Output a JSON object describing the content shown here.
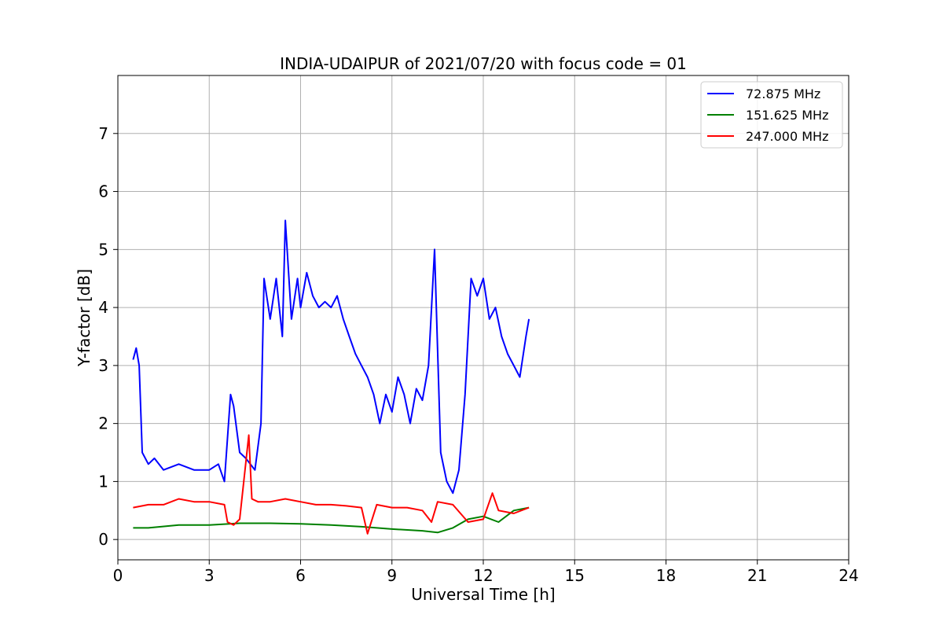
{
  "chart_data": {
    "type": "line",
    "title": "INDIA-UDAIPUR of 2021/07/20 with focus code = 01",
    "xlabel": "Universal Time [h]",
    "ylabel": "Y-factor [dB]",
    "xlim": [
      0,
      24
    ],
    "ylim": [
      -0.35,
      8.0
    ],
    "xticks": [
      0,
      3,
      6,
      9,
      12,
      15,
      18,
      21,
      24
    ],
    "xtick_labels": [
      "0",
      "3",
      "6",
      "9",
      "12",
      "15",
      "18",
      "21",
      "24"
    ],
    "yticks": [
      0,
      1,
      2,
      3,
      4,
      5,
      6,
      7
    ],
    "ytick_labels": [
      "0",
      "1",
      "2",
      "3",
      "4",
      "5",
      "6",
      "7"
    ],
    "grid": true,
    "legend_position": "top-right",
    "series": [
      {
        "name": "72.875 MHz",
        "color": "#0000ff",
        "x": [
          0.5,
          0.6,
          0.7,
          0.8,
          1.0,
          1.2,
          1.5,
          2.0,
          2.5,
          3.0,
          3.3,
          3.5,
          3.7,
          3.8,
          4.0,
          4.2,
          4.5,
          4.7,
          4.8,
          5.0,
          5.2,
          5.4,
          5.5,
          5.7,
          5.9,
          6.0,
          6.2,
          6.4,
          6.6,
          6.8,
          7.0,
          7.2,
          7.4,
          7.6,
          7.8,
          8.0,
          8.2,
          8.4,
          8.6,
          8.8,
          9.0,
          9.2,
          9.4,
          9.6,
          9.8,
          10.0,
          10.2,
          10.4,
          10.6,
          10.8,
          11.0,
          11.2,
          11.4,
          11.6,
          11.8,
          12.0,
          12.2,
          12.4,
          12.6,
          12.8,
          13.0,
          13.2,
          13.4,
          13.5
        ],
        "y": [
          3.1,
          3.3,
          3.0,
          1.5,
          1.3,
          1.4,
          1.2,
          1.3,
          1.2,
          1.2,
          1.3,
          1.0,
          2.5,
          2.3,
          1.5,
          1.4,
          1.2,
          2.0,
          4.5,
          3.8,
          4.5,
          3.5,
          5.5,
          3.8,
          4.5,
          4.0,
          4.6,
          4.2,
          4.0,
          4.1,
          4.0,
          4.2,
          3.8,
          3.5,
          3.2,
          3.0,
          2.8,
          2.5,
          2.0,
          2.5,
          2.2,
          2.8,
          2.5,
          2.0,
          2.6,
          2.4,
          3.0,
          5.0,
          1.5,
          1.0,
          0.8,
          1.2,
          2.5,
          4.5,
          4.2,
          4.5,
          3.8,
          4.0,
          3.5,
          3.2,
          3.0,
          2.8,
          3.5,
          3.8
        ]
      },
      {
        "name": "151.625 MHz",
        "color": "#008000",
        "x": [
          0.5,
          1.0,
          2.0,
          3.0,
          4.0,
          5.0,
          6.0,
          7.0,
          8.0,
          9.0,
          10.0,
          10.5,
          11.0,
          11.5,
          12.0,
          12.5,
          13.0,
          13.5
        ],
        "y": [
          0.2,
          0.2,
          0.25,
          0.25,
          0.28,
          0.28,
          0.27,
          0.25,
          0.22,
          0.18,
          0.15,
          0.12,
          0.2,
          0.35,
          0.4,
          0.3,
          0.5,
          0.55
        ]
      },
      {
        "name": "247.000 MHz",
        "color": "#ff0000",
        "x": [
          0.5,
          1.0,
          1.5,
          2.0,
          2.5,
          3.0,
          3.5,
          3.6,
          3.8,
          4.0,
          4.3,
          4.4,
          4.6,
          5.0,
          5.5,
          6.0,
          6.5,
          7.0,
          7.5,
          8.0,
          8.2,
          8.5,
          9.0,
          9.5,
          10.0,
          10.3,
          10.5,
          11.0,
          11.5,
          12.0,
          12.3,
          12.5,
          13.0,
          13.5
        ],
        "y": [
          0.55,
          0.6,
          0.6,
          0.7,
          0.65,
          0.65,
          0.6,
          0.3,
          0.25,
          0.35,
          1.8,
          0.7,
          0.65,
          0.65,
          0.7,
          0.65,
          0.6,
          0.6,
          0.58,
          0.55,
          0.1,
          0.6,
          0.55,
          0.55,
          0.5,
          0.3,
          0.65,
          0.6,
          0.3,
          0.35,
          0.8,
          0.5,
          0.45,
          0.55
        ]
      }
    ]
  }
}
